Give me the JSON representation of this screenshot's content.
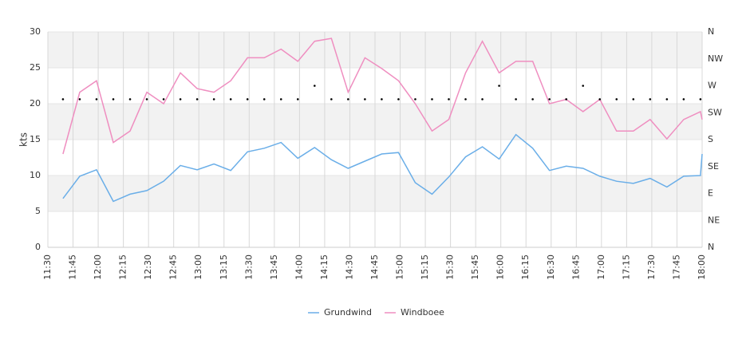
{
  "chart_data": {
    "type": "line",
    "y_label": "kts",
    "x": [
      "11:39",
      "11:49",
      "11:59",
      "12:09",
      "12:19",
      "12:29",
      "12:39",
      "12:49",
      "12:59",
      "13:09",
      "13:19",
      "13:29",
      "13:39",
      "13:49",
      "13:59",
      "14:09",
      "14:19",
      "14:29",
      "14:39",
      "14:49",
      "14:59",
      "15:09",
      "15:19",
      "15:29",
      "15:39",
      "15:49",
      "15:59",
      "16:09",
      "16:19",
      "16:29",
      "16:39",
      "16:49",
      "16:59",
      "17:09",
      "17:19",
      "17:29",
      "17:39",
      "17:49",
      "17:59",
      "18:00"
    ],
    "xlim": [
      "11:30",
      "18:00"
    ],
    "xticks": [
      "11:30",
      "11:45",
      "12:00",
      "12:15",
      "12:30",
      "12:45",
      "13:00",
      "13:15",
      "13:30",
      "13:45",
      "14:00",
      "14:15",
      "14:30",
      "14:45",
      "15:00",
      "15:15",
      "15:30",
      "15:45",
      "16:00",
      "16:15",
      "16:30",
      "16:45",
      "17:00",
      "17:15",
      "17:30",
      "17:45",
      "18:00"
    ],
    "ylim": [
      0,
      30
    ],
    "yticks": [
      0,
      5,
      10,
      15,
      20,
      25,
      30
    ],
    "y2lim": [
      0,
      360
    ],
    "y2ticks": [
      {
        "value": 0,
        "label": "N"
      },
      {
        "value": 45,
        "label": "NE"
      },
      {
        "value": 90,
        "label": "E"
      },
      {
        "value": 135,
        "label": "SE"
      },
      {
        "value": 180,
        "label": "S"
      },
      {
        "value": 225,
        "label": "SW"
      },
      {
        "value": 270,
        "label": "W"
      },
      {
        "value": 315,
        "label": "NW"
      },
      {
        "value": 360,
        "label": "N"
      }
    ],
    "grid": true,
    "legend": "bottom",
    "series": [
      {
        "name": "Grundwind",
        "color": "#6aaee8",
        "values": [
          6.8,
          9.9,
          10.8,
          6.4,
          7.4,
          7.9,
          9.2,
          11.4,
          10.8,
          11.6,
          10.7,
          13.3,
          13.8,
          14.6,
          12.4,
          13.9,
          12.2,
          11.0,
          12.0,
          13.0,
          13.2,
          9.0,
          7.4,
          9.8,
          12.6,
          14.0,
          12.3,
          15.7,
          13.8,
          10.7,
          11.3,
          11.0,
          9.9,
          9.2,
          8.9,
          9.6,
          8.4,
          9.9,
          10.0,
          13.0
        ]
      },
      {
        "name": "Windboee",
        "color": "#ef8ec0",
        "values": [
          13.0,
          21.6,
          23.2,
          14.6,
          16.2,
          21.6,
          20.0,
          24.3,
          22.1,
          21.6,
          23.2,
          26.4,
          26.4,
          27.6,
          25.9,
          28.7,
          29.1,
          21.6,
          26.4,
          24.9,
          23.2,
          20.0,
          16.2,
          17.8,
          24.3,
          28.7,
          24.3,
          25.9,
          25.9,
          20.0,
          20.6,
          18.9,
          20.6,
          16.2,
          16.2,
          17.8,
          15.1,
          17.8,
          18.9,
          17.8
        ]
      },
      {
        "color": "#000000",
        "axis": "y2",
        "marker": "dot",
        "values": [
          247.5,
          247.5,
          247.5,
          247.5,
          247.5,
          247.5,
          247.5,
          247.5,
          247.5,
          247.5,
          247.5,
          247.5,
          247.5,
          247.5,
          247.5,
          270,
          247.5,
          247.5,
          247.5,
          247.5,
          247.5,
          247.5,
          247.5,
          247.5,
          247.5,
          247.5,
          270,
          247.5,
          247.5,
          247.5,
          247.5,
          270,
          247.5,
          247.5,
          247.5,
          247.5,
          247.5,
          247.5,
          247.5,
          null
        ]
      }
    ]
  }
}
